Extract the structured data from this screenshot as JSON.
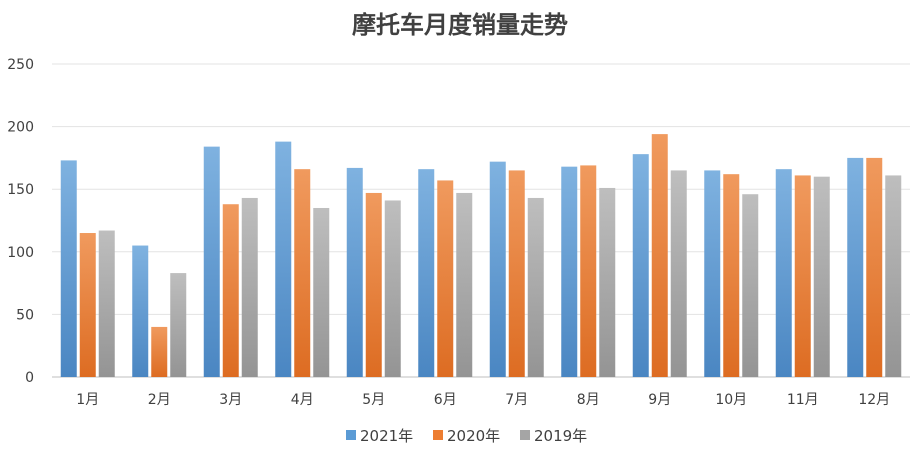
{
  "chart_data": {
    "type": "bar",
    "title": "摩托车月度销量走势",
    "xlabel": "",
    "ylabel": "",
    "ylim": [
      0,
      250
    ],
    "yticks": [
      0,
      50,
      100,
      150,
      200,
      250
    ],
    "grid": true,
    "legend_position": "bottom",
    "categories": [
      "1月",
      "2月",
      "3月",
      "4月",
      "5月",
      "6月",
      "7月",
      "8月",
      "9月",
      "10月",
      "11月",
      "12月"
    ],
    "series": [
      {
        "name": "2021年",
        "color": "#5B9BD5",
        "values": [
          173,
          105,
          184,
          188,
          167,
          166,
          172,
          168,
          178,
          165,
          166,
          175
        ]
      },
      {
        "name": "2020年",
        "color": "#ED7D31",
        "values": [
          115,
          40,
          138,
          166,
          147,
          157,
          165,
          169,
          194,
          162,
          161,
          175
        ]
      },
      {
        "name": "2019年",
        "color": "#A5A5A5",
        "values": [
          117,
          83,
          143,
          135,
          141,
          147,
          143,
          151,
          165,
          146,
          160,
          161
        ]
      }
    ]
  }
}
